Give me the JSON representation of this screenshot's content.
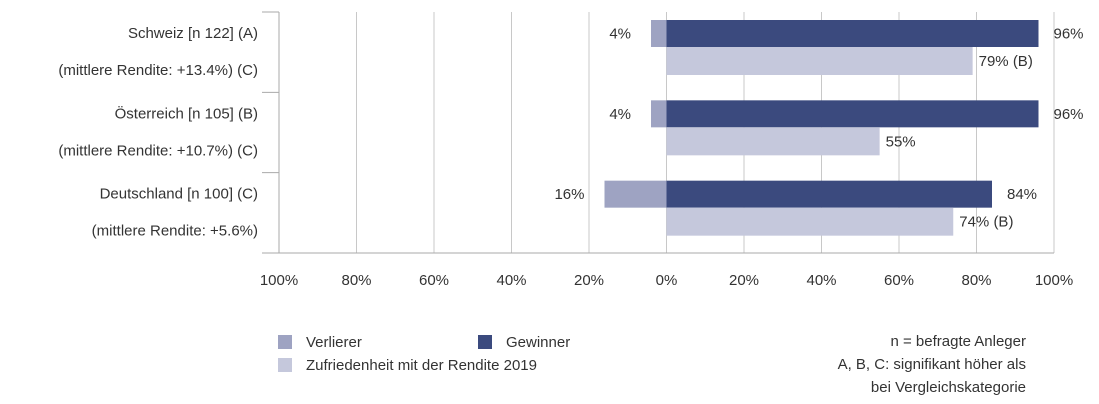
{
  "chart_data": {
    "type": "bar",
    "orientation": "horizontal",
    "categories": [
      "Schweiz [n 122] (A)",
      "Österreich [n 105] (B)",
      "Deutschland [n 100] (C)"
    ],
    "subcategories": [
      "(mittlere Rendite: +13.4%) (C)",
      "(mittlere Rendite: +10.7%) (C)",
      "(mittlere Rendite: +5.6%)"
    ],
    "series": [
      {
        "name": "Verlierer",
        "color": "#9ea3c2",
        "values": [
          -4,
          -4,
          -16
        ],
        "value_labels": [
          "4%",
          "4%",
          "16%"
        ],
        "row": 0
      },
      {
        "name": "Gewinner",
        "color": "#3b4a7e",
        "values": [
          96,
          96,
          84
        ],
        "value_labels": [
          "96%",
          "96%",
          "84%"
        ],
        "row": 0
      },
      {
        "name": "Zufriedenheit mit der Rendite 2019",
        "color": "#c5c8dc",
        "values": [
          79,
          55,
          74
        ],
        "value_labels": [
          "79% (B)",
          "55%",
          "74% (B)"
        ],
        "row": 1
      }
    ],
    "xlim": [
      -100,
      100
    ],
    "xticks": [
      {
        "value": -100,
        "label": "100%"
      },
      {
        "value": -80,
        "label": "80%"
      },
      {
        "value": -60,
        "label": "60%"
      },
      {
        "value": -40,
        "label": "40%"
      },
      {
        "value": -20,
        "label": "20%"
      },
      {
        "value": 0,
        "label": "0%"
      },
      {
        "value": 20,
        "label": "20%"
      },
      {
        "value": 40,
        "label": "40%"
      },
      {
        "value": 60,
        "label": "60%"
      },
      {
        "value": 80,
        "label": "80%"
      },
      {
        "value": 100,
        "label": "100%"
      }
    ],
    "grid": true,
    "notes": [
      "n = befragte Anleger",
      "A, B, C: signifikant höher als",
      "bei Vergleichskategorie"
    ]
  }
}
